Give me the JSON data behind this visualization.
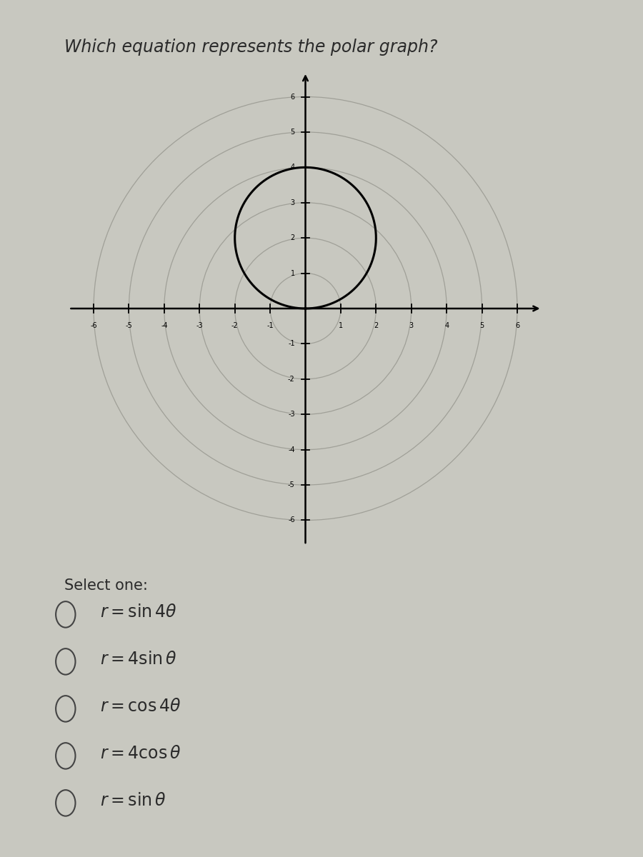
{
  "title": "Which equation represents the polar graph?",
  "title_fontsize": 17,
  "bg_color": "#c8c8c0",
  "plot_bg_color": "#c0bdb5",
  "inner_plot_bg": "#bab8b0",
  "axis_range": [
    -6.8,
    6.8
  ],
  "axis_ticks": [
    -6,
    -5,
    -4,
    -3,
    -2,
    -1,
    1,
    2,
    3,
    4,
    5,
    6
  ],
  "concentric_radii": [
    1,
    2,
    3,
    4,
    5,
    6
  ],
  "polar_amplitude": 4,
  "select_one_label": "Select one:",
  "curve_color": "#000000",
  "circle_color": "#a0a098",
  "axis_color": "#000000",
  "text_color": "#2a2a2a",
  "radio_color": "#444444",
  "options_latex": [
    "$r = \\sin 4\\theta$",
    "$r = 4\\sin\\theta$",
    "$r = \\cos 4\\theta$",
    "$r = 4\\cos\\theta$",
    "$r = \\sin\\theta$"
  ]
}
